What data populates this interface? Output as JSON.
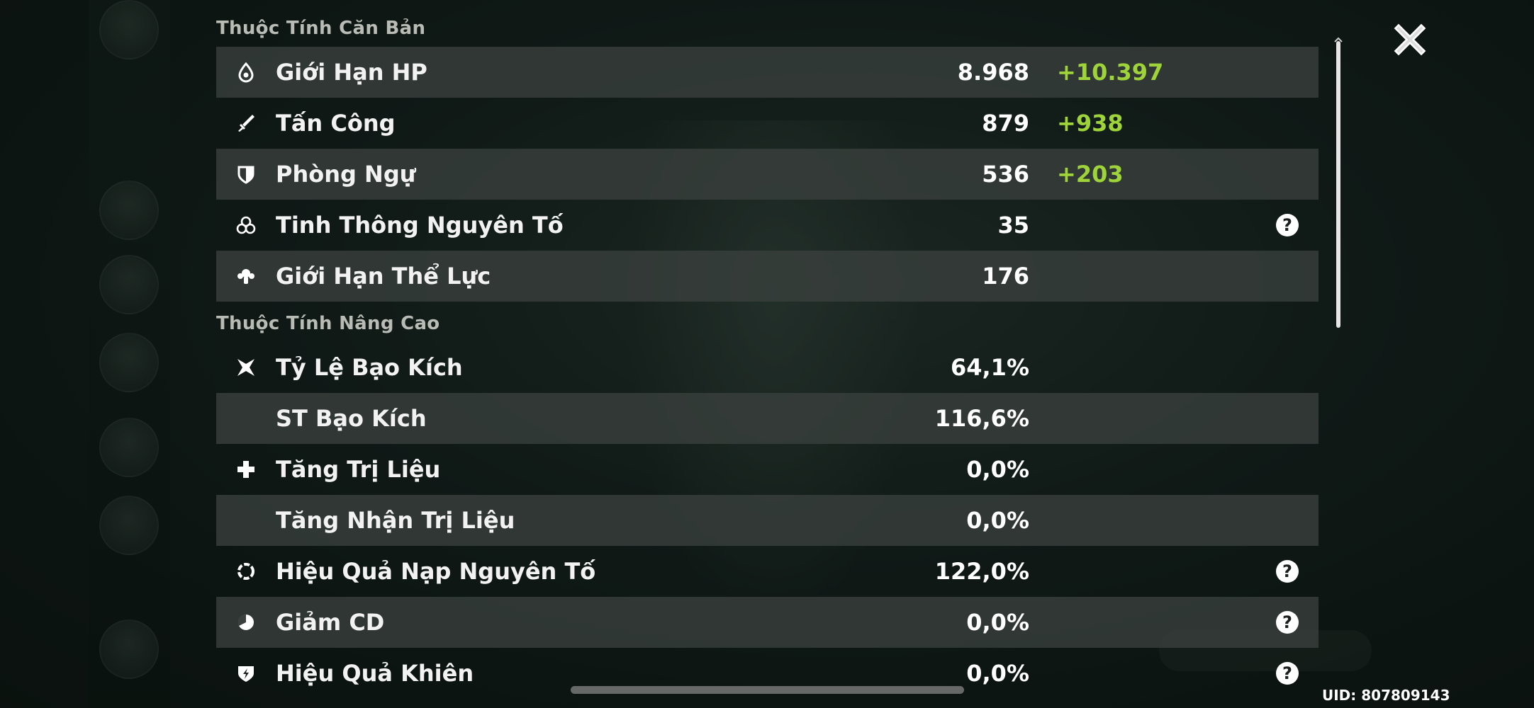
{
  "sections": {
    "basic_title": "Thuộc Tính Căn Bản",
    "advanced_title": "Thuộc Tính Nâng Cao"
  },
  "basic_stats": [
    {
      "icon": "drop-icon",
      "label": "Giới Hạn HP",
      "value": "8.968",
      "bonus": "+10.397",
      "help": false
    },
    {
      "icon": "sword-icon",
      "label": "Tấn Công",
      "value": "879",
      "bonus": "+938",
      "help": false
    },
    {
      "icon": "shield-icon",
      "label": "Phòng Ngự",
      "value": "536",
      "bonus": "+203",
      "help": false
    },
    {
      "icon": "elemental-mastery-icon",
      "label": "Tinh Thông Nguyên Tố",
      "value": "35",
      "bonus": "",
      "help": true
    },
    {
      "icon": "stamina-icon",
      "label": "Giới Hạn Thể Lực",
      "value": "176",
      "bonus": "",
      "help": false
    }
  ],
  "advanced_stats": [
    {
      "icon": "crit-rate-icon",
      "label": "Tỷ Lệ Bạo Kích",
      "value": "64,1%",
      "help": false
    },
    {
      "icon": "",
      "label": "ST Bạo Kích",
      "value": "116,6%",
      "help": false
    },
    {
      "icon": "healing-icon",
      "label": "Tăng Trị Liệu",
      "value": "0,0%",
      "help": false
    },
    {
      "icon": "",
      "label": "Tăng Nhận Trị Liệu",
      "value": "0,0%",
      "help": false
    },
    {
      "icon": "energy-recharge-icon",
      "label": "Hiệu Quả Nạp Nguyên Tố",
      "value": "122,0%",
      "help": true
    },
    {
      "icon": "cd-reduction-icon",
      "label": "Giảm CD",
      "value": "0,0%",
      "help": true
    },
    {
      "icon": "shield-strength-icon",
      "label": "Hiệu Quả Khiên",
      "value": "0,0%",
      "help": true
    }
  ],
  "help_symbol": "?",
  "uid": "UID: 807809143",
  "colors": {
    "bonus": "#9ed43a",
    "row_shade": "#3a403e",
    "section_title": "#b9bcb5"
  }
}
